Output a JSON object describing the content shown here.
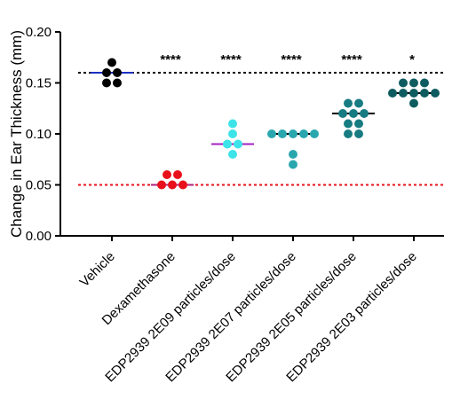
{
  "chart_data": {
    "type": "strip",
    "y_label": "Change in Ear Thickness (mm)",
    "ylim": [
      0,
      0.2
    ],
    "yticks": [
      {
        "value": 0,
        "label": "0.00"
      },
      {
        "value": 0.05,
        "label": "0.05"
      },
      {
        "value": 0.1,
        "label": "0.10"
      },
      {
        "value": 0.15,
        "label": "0.15"
      },
      {
        "value": 0.2,
        "label": "0.20"
      }
    ],
    "reference_lines": [
      {
        "value": 0.16,
        "color": "#000000"
      },
      {
        "value": 0.05,
        "color": "#e8111b"
      }
    ],
    "groups": [
      {
        "category": "Vehicle",
        "color": "#000000",
        "median": 0.16,
        "median_color": "#1a2fc4",
        "values": [
          0.17,
          0.16,
          0.16,
          0.15,
          0.15
        ]
      },
      {
        "category": "Dexamethasone",
        "color": "#e8111b",
        "median": 0.05,
        "median_color": "#b0207a",
        "annotation": "****",
        "values": [
          0.06,
          0.06,
          0.05,
          0.05,
          0.05
        ]
      },
      {
        "category": "EDP2939 2E09 particles/dose",
        "color": "#3ce3e8",
        "median": 0.09,
        "median_color": "#a020c0",
        "annotation": "****",
        "values": [
          0.11,
          0.1,
          0.09,
          0.09,
          0.08
        ]
      },
      {
        "category": "EDP2939 2E07 particles/dose",
        "color": "#2aa7ae",
        "median": 0.1,
        "median_color": "#000000",
        "annotation": "****",
        "values": [
          0.1,
          0.1,
          0.1,
          0.1,
          0.1,
          0.08,
          0.07
        ]
      },
      {
        "category": "EDP2939 2E05 particles/dose",
        "color": "#177c82",
        "median": 0.12,
        "median_color": "#000000",
        "annotation": "****",
        "values": [
          0.13,
          0.13,
          0.12,
          0.12,
          0.12,
          0.11,
          0.11,
          0.1,
          0.1
        ]
      },
      {
        "category": "EDP2939 2E03 particles/dose",
        "color": "#0f5c60",
        "median": 0.14,
        "median_color": "#000000",
        "annotation": "*",
        "values": [
          0.15,
          0.15,
          0.15,
          0.14,
          0.14,
          0.14,
          0.14,
          0.14,
          0.13
        ]
      }
    ]
  }
}
